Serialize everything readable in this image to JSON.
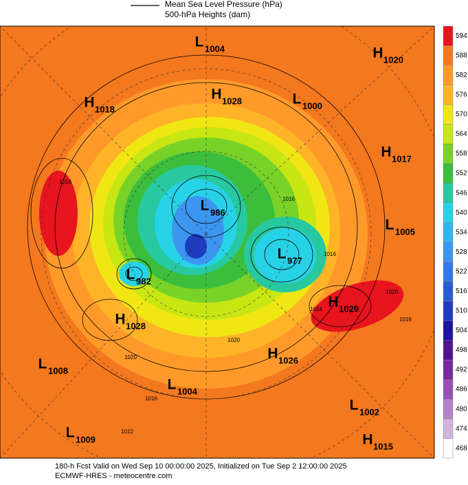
{
  "header": {
    "line_label": "Mean Sea Level Pressure (hPa)",
    "fill_label": "500-hPa Heights (dam)"
  },
  "colorbar": {
    "levels": [
      594,
      588,
      582,
      576,
      570,
      564,
      558,
      552,
      546,
      540,
      534,
      528,
      522,
      516,
      510,
      504,
      498,
      492,
      486,
      480,
      474,
      468
    ],
    "colors": [
      "#e8141e",
      "#f4781e",
      "#ff9a2a",
      "#ffb428",
      "#f0e614",
      "#c8e614",
      "#78d228",
      "#3cbe3c",
      "#28c8a0",
      "#28d2e6",
      "#32b4f0",
      "#3c96f0",
      "#3278e6",
      "#285ad2",
      "#1e3cbe",
      "#1e14a0",
      "#50148c",
      "#7828a0",
      "#9650b4",
      "#b482c8",
      "#d2b4dc",
      "#ffffff"
    ]
  },
  "centers": [
    {
      "symbol": "L",
      "value": 1004
    },
    {
      "symbol": "H",
      "value": 1020
    },
    {
      "symbol": "H",
      "value": 1018
    },
    {
      "symbol": "H",
      "value": 1028
    },
    {
      "symbol": "L",
      "value": 1000
    },
    {
      "symbol": "H",
      "value": 1017
    },
    {
      "symbol": "L",
      "value": 1005
    },
    {
      "symbol": "L",
      "value": 986
    },
    {
      "symbol": "L",
      "value": 977
    },
    {
      "symbol": "L",
      "value": 982
    },
    {
      "symbol": "H",
      "value": 1029
    },
    {
      "symbol": "H",
      "value": 1028
    },
    {
      "symbol": "H",
      "value": 1026
    },
    {
      "symbol": "L",
      "value": 1008
    },
    {
      "symbol": "L",
      "value": 1004
    },
    {
      "symbol": "L",
      "value": 1002
    },
    {
      "symbol": "L",
      "value": 1009
    },
    {
      "symbol": "H",
      "value": 1015
    }
  ],
  "contour_labels": [
    1016,
    1024,
    1020,
    1016,
    1016,
    1020,
    1016,
    1012,
    1016,
    1020
  ],
  "footer": {
    "valid": "180-h Fcst Valid on Wed Sep 10 00:00:00 2025, Initialized on Tue Sep  2 12:00:00 2025",
    "source": "ECMWF-HRES  - meteocentre.com"
  }
}
